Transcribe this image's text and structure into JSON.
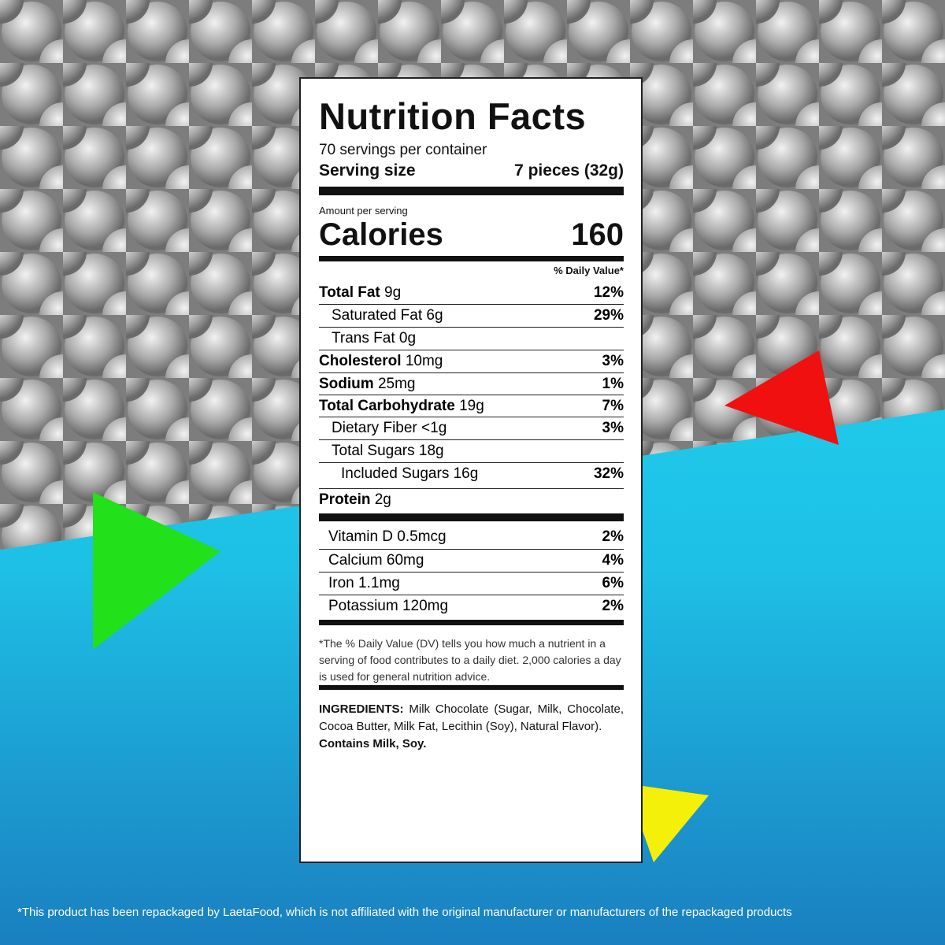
{
  "label": {
    "title": "Nutrition Facts",
    "servings": "70 servings per container",
    "serving_size": {
      "label": "Serving size",
      "value": "7 pieces (32g)"
    },
    "amount_per_serving": "Amount per serving",
    "calories": {
      "label": "Calories",
      "value": 160
    },
    "dv_header": "% Daily Value*",
    "nutrients": [
      {
        "name": "Total Fat",
        "amount": "9g",
        "dv": "12%"
      },
      {
        "name": "Saturated Fat",
        "amount": "6g",
        "dv": "29%"
      },
      {
        "name": "Trans Fat",
        "amount": "0g"
      },
      {
        "name": "Cholesterol",
        "amount": "10mg",
        "dv": "3%"
      },
      {
        "name": "Sodium",
        "amount": "25mg",
        "dv": "1%"
      },
      {
        "name": "Total Carbohydrate",
        "amount": "19g",
        "dv": "7%"
      },
      {
        "name": "Dietary Fiber",
        "amount": "<1g",
        "dv": "3%"
      },
      {
        "name": "Total Sugars",
        "amount": "18g"
      },
      {
        "name": "Included Sugars",
        "amount": "16g",
        "dv": "32%"
      },
      {
        "name": "Protein",
        "amount": "2g"
      }
    ],
    "vitamins": [
      {
        "name": "Vitamin D",
        "amount": "0.5mcg",
        "dv": "2%"
      },
      {
        "name": "Calcium",
        "amount": "60mg",
        "dv": "4%"
      },
      {
        "name": "Iron",
        "amount": "1.1mg",
        "dv": "6%"
      },
      {
        "name": "Potassium",
        "amount": "120mg",
        "dv": "2%"
      }
    ],
    "footnote": "*The % Daily Value (DV) tells you how much a nutrient in a serving of food contributes to a daily diet. 2,000 calories a day is used for general nutrition advice.",
    "ingredients": {
      "label": "INGREDIENTS:",
      "text": "Milk Chocolate (Sugar, Milk, Chocolate, Cocoa Butter, Milk Fat, Lecithin (Soy), Natural Flavor).",
      "contains": "Contains Milk, Soy."
    }
  },
  "disclaimer": "*This product has been repackaged by LaetaFood, which is not affiliated with the original manufacturer or manufacturers of the repackaged products"
}
